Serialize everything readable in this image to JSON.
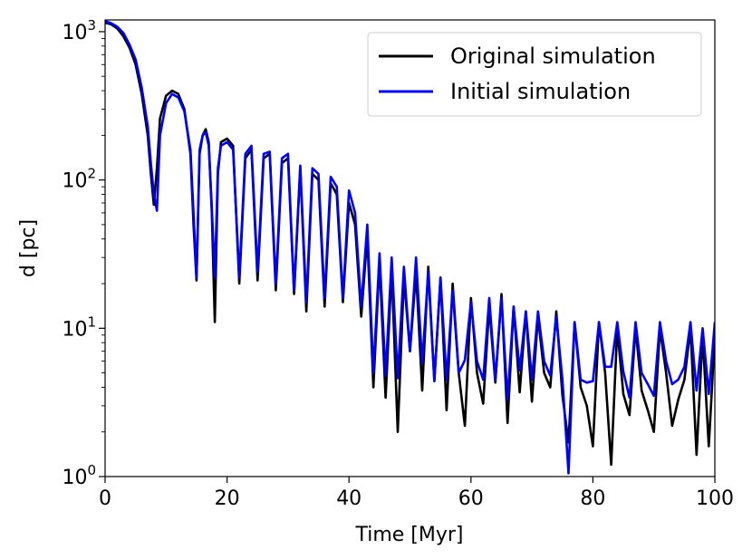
{
  "chart_data": {
    "type": "line",
    "title": "",
    "xlabel": "Time [Myr]",
    "ylabel": "d [pc]",
    "xlim": [
      0,
      100
    ],
    "ylim": [
      1,
      1200
    ],
    "yscale": "log",
    "grid": false,
    "legend_position": "top-right",
    "x_ticks": [
      {
        "value": 0,
        "label": "0"
      },
      {
        "value": 20,
        "label": "20"
      },
      {
        "value": 40,
        "label": "40"
      },
      {
        "value": 60,
        "label": "60"
      },
      {
        "value": 80,
        "label": "80"
      },
      {
        "value": 100,
        "label": "100"
      }
    ],
    "y_ticks": [
      {
        "value": 1,
        "base": "10",
        "exp": "0"
      },
      {
        "value": 10,
        "base": "10",
        "exp": "1"
      },
      {
        "value": 100,
        "base": "10",
        "exp": "2"
      },
      {
        "value": 1000,
        "base": "10",
        "exp": "3"
      }
    ],
    "series": [
      {
        "name": "Original simulation",
        "color": "#000000",
        "x": [
          0,
          1,
          2,
          3,
          4,
          5,
          6,
          7,
          7.5,
          8,
          8.5,
          9,
          10,
          11,
          12,
          13,
          14,
          14.5,
          15,
          15.5,
          16,
          16.5,
          17,
          17.5,
          18,
          18.5,
          19,
          20,
          21,
          22,
          23,
          24,
          25,
          26,
          27,
          28,
          29,
          30,
          31,
          32,
          33,
          34,
          35,
          36,
          37,
          38,
          39,
          40,
          41,
          42,
          43,
          44,
          45,
          46,
          47,
          48,
          49,
          50,
          51,
          52,
          53,
          54,
          55,
          56,
          57,
          58,
          59,
          60,
          61,
          62,
          63,
          64,
          65,
          66,
          67,
          68,
          69,
          70,
          71,
          72,
          73,
          74,
          75,
          76,
          77,
          78,
          79,
          80,
          81,
          82,
          83,
          84,
          85,
          86,
          87,
          88,
          89,
          90,
          91,
          92,
          93,
          94,
          95,
          96,
          97,
          98,
          99,
          100
        ],
        "y": [
          1150,
          1120,
          1050,
          930,
          780,
          600,
          380,
          200,
          110,
          68,
          120,
          260,
          370,
          400,
          380,
          300,
          150,
          50,
          21,
          150,
          200,
          220,
          180,
          60,
          11,
          110,
          180,
          190,
          170,
          20,
          140,
          160,
          21,
          140,
          150,
          18,
          130,
          140,
          17,
          120,
          13,
          110,
          100,
          14,
          95,
          80,
          15,
          70,
          50,
          12,
          42,
          4.0,
          28,
          3.4,
          25,
          2.0,
          22,
          7,
          24,
          3.8,
          26,
          4.4,
          22,
          2.8,
          20,
          5,
          2.2,
          16,
          5,
          3.1,
          14,
          4.3,
          17,
          2.3,
          14,
          3.7,
          13,
          3.2,
          12,
          5,
          4.0,
          13,
          3.5,
          1.7,
          11,
          4.0,
          3.0,
          1.6,
          11,
          5,
          1.2,
          10,
          3.6,
          2.6,
          10,
          3.8,
          2.8,
          2.0,
          10,
          5,
          2.2,
          3.3,
          4.5,
          10,
          1.4,
          9,
          1.6,
          9
        ]
      },
      {
        "name": "Initial simulation",
        "color": "#0000ff",
        "x": [
          0,
          1,
          2,
          3,
          4,
          5,
          6,
          7,
          7.5,
          8,
          8.5,
          9,
          10,
          11,
          12,
          13,
          14,
          14.5,
          15,
          15.5,
          16,
          16.5,
          17,
          17.5,
          18,
          18.5,
          19,
          20,
          21,
          22,
          23,
          24,
          25,
          26,
          27,
          28,
          29,
          30,
          31,
          32,
          33,
          34,
          35,
          36,
          37,
          38,
          39,
          40,
          41,
          42,
          43,
          44,
          45,
          46,
          47,
          48,
          49,
          50,
          51,
          52,
          53,
          54,
          55,
          56,
          57,
          58,
          59,
          60,
          61,
          62,
          63,
          64,
          65,
          66,
          67,
          68,
          69,
          70,
          71,
          72,
          73,
          74,
          75,
          76,
          77,
          78,
          79,
          80,
          81,
          82,
          83,
          84,
          85,
          86,
          87,
          88,
          89,
          90,
          91,
          92,
          93,
          94,
          95,
          96,
          97,
          98,
          99,
          100
        ],
        "y": [
          1180,
          1140,
          1080,
          980,
          820,
          650,
          420,
          230,
          130,
          80,
          62,
          200,
          330,
          380,
          360,
          290,
          160,
          60,
          22,
          160,
          200,
          210,
          170,
          65,
          22,
          120,
          170,
          180,
          160,
          22,
          150,
          170,
          24,
          150,
          155,
          20,
          140,
          150,
          18,
          125,
          15,
          120,
          110,
          16,
          105,
          90,
          16,
          85,
          60,
          14,
          50,
          5,
          32,
          4.8,
          30,
          4.6,
          26,
          7,
          30,
          5.8,
          24,
          4.4,
          22,
          4.5,
          18,
          5,
          6.1,
          15,
          6,
          4.5,
          16,
          4.5,
          16,
          3.3,
          14,
          5.2,
          13,
          4.5,
          13,
          6,
          4.8,
          12,
          4.5,
          1.05,
          11,
          4.5,
          4.3,
          4.4,
          11,
          5.5,
          5.5,
          11,
          5.1,
          3.4,
          11,
          5,
          4.2,
          3.5,
          11,
          6,
          4.2,
          4.5,
          5.5,
          11,
          3.8,
          10,
          3.6,
          11
        ]
      }
    ]
  }
}
